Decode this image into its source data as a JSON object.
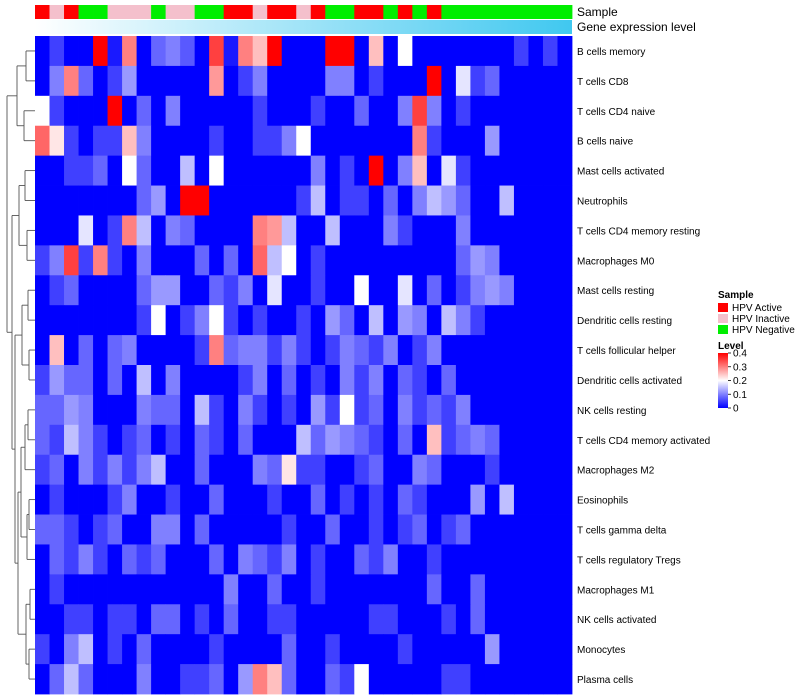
{
  "chart_data": {
    "type": "heatmap",
    "title": "",
    "annotation_labels": {
      "sample": "Sample",
      "gene_expression": "Gene expression level"
    },
    "samples_group": [
      "HPV Active",
      "HPV Inactive",
      "HPV Active",
      "HPV Negative",
      "HPV Negative",
      "HPV Inactive",
      "HPV Inactive",
      "HPV Inactive",
      "HPV Negative",
      "HPV Inactive",
      "HPV Inactive",
      "HPV Negative",
      "HPV Negative",
      "HPV Active",
      "HPV Active",
      "HPV Inactive",
      "HPV Active",
      "HPV Active",
      "HPV Inactive",
      "HPV Active",
      "HPV Negative",
      "HPV Negative",
      "HPV Active",
      "HPV Active",
      "HPV Negative",
      "HPV Active",
      "HPV Negative",
      "HPV Active",
      "HPV Negative",
      "HPV Negative",
      "HPV Negative",
      "HPV Negative",
      "HPV Negative",
      "HPV Negative",
      "HPV Negative",
      "HPV Negative",
      "HPV Negative"
    ],
    "gene_expression_gradient": [
      "#ffffff",
      "#40c8f0"
    ],
    "rows": [
      "B cells memory",
      "T cells CD8",
      "T cells CD4 naive",
      "B cells naive",
      "Mast cells activated",
      "Neutrophils",
      "T cells CD4 memory resting",
      "Macrophages M0",
      "Mast cells resting",
      "Dendritic cells resting",
      "T cells follicular helper",
      "Dendritic cells activated",
      "NK cells resting",
      "T cells CD4 memory activated",
      "Macrophages M2",
      "Eosinophils",
      "T cells gamma delta",
      "T cells regulatory  Tregs",
      "Macrophages M1",
      "NK cells activated",
      "Monocytes",
      "Plasma cells"
    ],
    "values": [
      [
        0,
        0.05,
        0,
        0,
        0.4,
        0.02,
        0.3,
        0,
        0.08,
        0.1,
        0.07,
        0,
        0.35,
        0.02,
        0.3,
        0.25,
        0.4,
        0,
        0,
        0,
        0.4,
        0.4,
        0,
        0.25,
        0,
        0.2,
        0,
        0,
        0,
        0,
        0,
        0,
        0,
        0.05,
        0,
        0.05,
        0
      ],
      [
        0,
        0.1,
        0.3,
        0.08,
        0,
        0.05,
        0.12,
        0,
        0,
        0,
        0,
        0,
        0.28,
        0,
        0.05,
        0.1,
        0,
        0,
        0,
        0,
        0.1,
        0.1,
        0,
        0.05,
        0,
        0,
        0,
        0.4,
        0,
        0.18,
        0.05,
        0.08,
        0,
        0,
        0,
        0,
        0
      ],
      [
        0.2,
        0.05,
        0,
        0,
        0,
        0.4,
        0,
        0.08,
        0,
        0.1,
        0,
        0,
        0,
        0,
        0,
        0.05,
        0,
        0,
        0,
        0.05,
        0,
        0,
        0.08,
        0,
        0,
        0.1,
        0.35,
        0.1,
        0,
        0.05,
        0,
        0,
        0,
        0,
        0,
        0,
        0
      ],
      [
        0.32,
        0.22,
        0.05,
        0,
        0.05,
        0.05,
        0.25,
        0.1,
        0,
        0,
        0,
        0,
        0.05,
        0,
        0,
        0.05,
        0.05,
        0.1,
        0.2,
        0,
        0,
        0,
        0,
        0,
        0,
        0,
        0.3,
        0.05,
        0,
        0,
        0,
        0.12,
        0,
        0,
        0,
        0,
        0
      ],
      [
        0,
        0,
        0.05,
        0.05,
        0.08,
        0,
        0.2,
        0.08,
        0,
        0,
        0.15,
        0,
        0.2,
        0,
        0,
        0,
        0,
        0,
        0,
        0.1,
        0,
        0.05,
        0,
        0.4,
        0,
        0.1,
        0.25,
        0,
        0.18,
        0.05,
        0,
        0,
        0,
        0,
        0,
        0,
        0
      ],
      [
        0,
        0,
        0,
        0,
        0,
        0,
        0,
        0.08,
        0.12,
        0,
        0.4,
        0.4,
        0,
        0,
        0,
        0,
        0,
        0,
        0.05,
        0.15,
        0,
        0.05,
        0.05,
        0,
        0.08,
        0,
        0.1,
        0.15,
        0.12,
        0.08,
        0,
        0,
        0.15,
        0,
        0,
        0,
        0
      ],
      [
        0,
        0,
        0,
        0.18,
        0,
        0.05,
        0.3,
        0.15,
        0,
        0.1,
        0.08,
        0,
        0,
        0,
        0,
        0.3,
        0.28,
        0.15,
        0,
        0,
        0.15,
        0,
        0,
        0,
        0.1,
        0.05,
        0,
        0,
        0,
        0.1,
        0,
        0,
        0,
        0,
        0,
        0,
        0
      ],
      [
        0.05,
        0.1,
        0.35,
        0.05,
        0.3,
        0.05,
        0,
        0.1,
        0,
        0,
        0,
        0.08,
        0,
        0.08,
        0,
        0.32,
        0.15,
        0.2,
        0,
        0.05,
        0,
        0,
        0,
        0,
        0,
        0,
        0,
        0,
        0,
        0.08,
        0.12,
        0.1,
        0,
        0,
        0,
        0,
        0
      ],
      [
        0,
        0.05,
        0.08,
        0,
        0,
        0,
        0,
        0.08,
        0.12,
        0.12,
        0,
        0,
        0.08,
        0.05,
        0.1,
        0,
        0.18,
        0,
        0,
        0.05,
        0,
        0,
        0.2,
        0,
        0,
        0.18,
        0,
        0.08,
        0,
        0.05,
        0.1,
        0.12,
        0.1,
        0,
        0,
        0,
        0
      ],
      [
        0,
        0,
        0,
        0,
        0,
        0,
        0,
        0.05,
        0.2,
        0,
        0.05,
        0.1,
        0.2,
        0.05,
        0,
        0.05,
        0,
        0,
        0.05,
        0,
        0.12,
        0.08,
        0,
        0.15,
        0,
        0.12,
        0.1,
        0,
        0.15,
        0.1,
        0.05,
        0,
        0,
        0,
        0,
        0,
        0
      ],
      [
        0,
        0.25,
        0,
        0.08,
        0,
        0.08,
        0.1,
        0,
        0,
        0,
        0,
        0.05,
        0.3,
        0.08,
        0.1,
        0.1,
        0.05,
        0.1,
        0.05,
        0,
        0.05,
        0.1,
        0.08,
        0.05,
        0.1,
        0,
        0.05,
        0.1,
        0,
        0,
        0,
        0,
        0,
        0,
        0,
        0,
        0
      ],
      [
        0.05,
        0.12,
        0.08,
        0.08,
        0,
        0.08,
        0,
        0.15,
        0,
        0.1,
        0,
        0,
        0,
        0,
        0.05,
        0.1,
        0,
        0.08,
        0,
        0.05,
        0,
        0.1,
        0.05,
        0.1,
        0,
        0.08,
        0.05,
        0,
        0.08,
        0,
        0,
        0,
        0,
        0,
        0,
        0,
        0
      ],
      [
        0.08,
        0.08,
        0.12,
        0.1,
        0,
        0,
        0,
        0.1,
        0.08,
        0.08,
        0,
        0.15,
        0.05,
        0,
        0.1,
        0.05,
        0,
        0.05,
        0,
        0.12,
        0.05,
        0.2,
        0.05,
        0.08,
        0,
        0.1,
        0.05,
        0.08,
        0.05,
        0.1,
        0,
        0,
        0,
        0,
        0,
        0,
        0
      ],
      [
        0.08,
        0.05,
        0.15,
        0.1,
        0.05,
        0,
        0.05,
        0.08,
        0,
        0.05,
        0,
        0.08,
        0.05,
        0,
        0.08,
        0,
        0,
        0,
        0.15,
        0.08,
        0.12,
        0.1,
        0.08,
        0.05,
        0,
        0.08,
        0,
        0.25,
        0.05,
        0.08,
        0.1,
        0.08,
        0,
        0,
        0,
        0,
        0
      ],
      [
        0.05,
        0.08,
        0,
        0.1,
        0.05,
        0.1,
        0.05,
        0.1,
        0.15,
        0,
        0,
        0.08,
        0,
        0,
        0,
        0.1,
        0.08,
        0.22,
        0.05,
        0.05,
        0,
        0,
        0.05,
        0.08,
        0,
        0,
        0.1,
        0.08,
        0,
        0,
        0,
        0.05,
        0,
        0,
        0,
        0,
        0
      ],
      [
        0,
        0.05,
        0,
        0,
        0,
        0.05,
        0.1,
        0,
        0,
        0.05,
        0,
        0,
        0.08,
        0,
        0,
        0,
        0.05,
        0,
        0,
        0.08,
        0,
        0.05,
        0,
        0.05,
        0,
        0.08,
        0.05,
        0,
        0,
        0,
        0.12,
        0,
        0.15,
        0,
        0,
        0,
        0
      ],
      [
        0.08,
        0.08,
        0.05,
        0,
        0.05,
        0.08,
        0,
        0,
        0.1,
        0.1,
        0,
        0.08,
        0,
        0,
        0,
        0,
        0,
        0.05,
        0,
        0,
        0.08,
        0,
        0,
        0.05,
        0,
        0.05,
        0.08,
        0,
        0.05,
        0.08,
        0,
        0,
        0,
        0,
        0,
        0,
        0
      ],
      [
        0,
        0.08,
        0.05,
        0.1,
        0.05,
        0,
        0.08,
        0.05,
        0.08,
        0,
        0,
        0,
        0.08,
        0,
        0.1,
        0.08,
        0.05,
        0.1,
        0,
        0.05,
        0,
        0,
        0.08,
        0.05,
        0.1,
        0,
        0,
        0.05,
        0,
        0,
        0,
        0,
        0,
        0,
        0,
        0,
        0
      ],
      [
        0,
        0.05,
        0,
        0,
        0,
        0,
        0,
        0,
        0,
        0,
        0,
        0,
        0,
        0.1,
        0,
        0,
        0.08,
        0,
        0,
        0.05,
        0,
        0,
        0,
        0,
        0,
        0,
        0,
        0.08,
        0,
        0,
        0.08,
        0,
        0,
        0,
        0,
        0,
        0
      ],
      [
        0,
        0,
        0.05,
        0.05,
        0,
        0.05,
        0.05,
        0,
        0.08,
        0.08,
        0,
        0.05,
        0,
        0.08,
        0,
        0,
        0.05,
        0.05,
        0,
        0,
        0,
        0,
        0,
        0.05,
        0.05,
        0,
        0,
        0,
        0.05,
        0,
        0.08,
        0,
        0,
        0,
        0,
        0,
        0
      ],
      [
        0.05,
        0,
        0.1,
        0.15,
        0,
        0.05,
        0,
        0.08,
        0,
        0,
        0,
        0,
        0.05,
        0,
        0,
        0,
        0,
        0.08,
        0,
        0,
        0.05,
        0,
        0,
        0,
        0,
        0.05,
        0,
        0,
        0,
        0,
        0,
        0.12,
        0,
        0,
        0,
        0,
        0
      ],
      [
        0,
        0.08,
        0.15,
        0.08,
        0,
        0,
        0,
        0.1,
        0,
        0,
        0.05,
        0.05,
        0.08,
        0,
        0.12,
        0.3,
        0.25,
        0.08,
        0,
        0,
        0.08,
        0.05,
        0.2,
        0,
        0,
        0,
        0,
        0,
        0.05,
        0.05,
        0,
        0,
        0,
        0,
        0,
        0,
        0
      ]
    ],
    "legend": {
      "sample_title": "Sample",
      "sample_entries": [
        {
          "label": "HPV Active",
          "color": "#ff0000"
        },
        {
          "label": "HPV Inactive",
          "color": "#f4c0cc"
        },
        {
          "label": "HPV Negative",
          "color": "#00ee00"
        }
      ],
      "level_title": "Level",
      "level_ticks": [
        "0.4",
        "0.3",
        "0.2",
        "0.1",
        "0"
      ],
      "level_range": [
        0,
        0.4
      ],
      "placement": "right"
    },
    "colorscale": [
      "#0000ff",
      "#ffffff",
      "#ff0000"
    ]
  }
}
